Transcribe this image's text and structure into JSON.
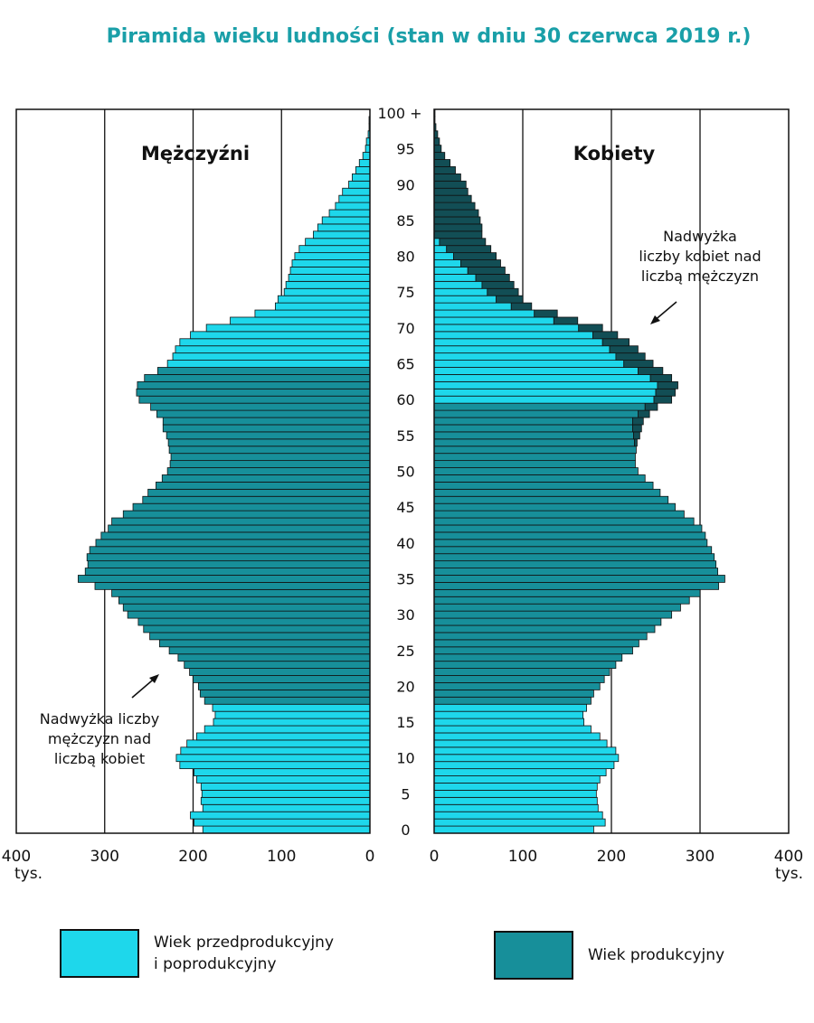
{
  "title": "Piramida wieku ludności (stan w dniu 30 czerwca 2019 r.)",
  "colors": {
    "light": "#1ed7eb",
    "dark": "#178f9a",
    "excess_women": "#124e55",
    "title": "#1a9fa8"
  },
  "chart_data": {
    "type": "bar",
    "orientation": "horizontal-population-pyramid",
    "title": "Piramida wieku ludności (stan w dniu 30 czerwca 2019 r.)",
    "units": "tys.",
    "xlim": [
      0,
      400
    ],
    "x_ticks": [
      400,
      300,
      200,
      100,
      0
    ],
    "age_ticks": [
      "0",
      "5",
      "10",
      "15",
      "20",
      "25",
      "30",
      "35",
      "40",
      "45",
      "50",
      "55",
      "60",
      "65",
      "70",
      "75",
      "80",
      "85",
      "90",
      "95",
      "100 +"
    ],
    "ages": [
      0,
      1,
      2,
      3,
      4,
      5,
      6,
      7,
      8,
      9,
      10,
      11,
      12,
      13,
      14,
      15,
      16,
      17,
      18,
      19,
      20,
      21,
      22,
      23,
      24,
      25,
      26,
      27,
      28,
      29,
      30,
      31,
      32,
      33,
      34,
      35,
      36,
      37,
      38,
      39,
      40,
      41,
      42,
      43,
      44,
      45,
      46,
      47,
      48,
      49,
      50,
      51,
      52,
      53,
      54,
      55,
      56,
      57,
      58,
      59,
      60,
      61,
      62,
      63,
      64,
      65,
      66,
      67,
      68,
      69,
      70,
      71,
      72,
      73,
      74,
      75,
      76,
      77,
      78,
      79,
      80,
      81,
      82,
      83,
      84,
      85,
      86,
      87,
      88,
      89,
      90,
      91,
      92,
      93,
      94,
      95,
      96,
      97,
      98,
      99,
      100
    ],
    "working_age": {
      "men": [
        18,
        64
      ],
      "women": [
        18,
        59
      ]
    },
    "series": [
      {
        "name": "Mężczyźni",
        "values": [
          189,
          199,
          203,
          189,
          191,
          190,
          191,
          196,
          199,
          215,
          219,
          214,
          207,
          196,
          187,
          177,
          175,
          178,
          187,
          192,
          194,
          200,
          204,
          210,
          217,
          227,
          238,
          249,
          256,
          262,
          274,
          279,
          284,
          292,
          311,
          330,
          322,
          319,
          320,
          317,
          310,
          304,
          296,
          292,
          279,
          268,
          257,
          251,
          242,
          235,
          229,
          226,
          225,
          227,
          228,
          230,
          234,
          234,
          241,
          248,
          261,
          264,
          263,
          255,
          240,
          229,
          223,
          220,
          215,
          203,
          185,
          158,
          130,
          107,
          104,
          97,
          95,
          92,
          90,
          88,
          85,
          80,
          73,
          64,
          59,
          54,
          46,
          39,
          35,
          31,
          24,
          20,
          16,
          12,
          8,
          5,
          4,
          2,
          1,
          1,
          0
        ]
      },
      {
        "name": "Kobiety",
        "values": [
          180,
          193,
          190,
          185,
          184,
          183,
          184,
          187,
          194,
          203,
          208,
          205,
          195,
          187,
          177,
          169,
          168,
          172,
          177,
          180,
          187,
          192,
          198,
          205,
          212,
          224,
          231,
          240,
          249,
          256,
          268,
          278,
          288,
          300,
          321,
          328,
          320,
          318,
          316,
          313,
          308,
          306,
          302,
          293,
          282,
          272,
          264,
          255,
          247,
          238,
          230,
          227,
          227,
          228,
          229,
          232,
          234,
          236,
          243,
          252,
          268,
          272,
          275,
          268,
          258,
          247,
          238,
          230,
          220,
          207,
          190,
          162,
          139,
          110,
          100,
          95,
          90,
          85,
          80,
          75,
          70,
          64,
          58,
          50,
          44,
          38,
          32,
          26,
          20,
          15,
          11,
          7,
          5,
          3,
          2,
          1,
          1,
          1,
          0,
          0,
          0
        ]
      },
      {
        "name": "Nadwyżka liczby kobiet nad liczbą mężczyzn",
        "values": [
          0,
          0,
          0,
          0,
          0,
          0,
          0,
          0,
          0,
          0,
          0,
          0,
          0,
          0,
          0,
          0,
          0,
          0,
          0,
          0,
          0,
          0,
          0,
          0,
          0,
          0,
          0,
          0,
          0,
          0,
          0,
          0,
          0,
          0,
          0,
          0,
          0,
          0,
          0,
          0,
          0,
          0,
          0,
          0,
          0,
          0,
          0,
          0,
          0,
          0,
          0,
          0,
          0,
          0,
          3,
          7,
          10,
          12,
          13,
          14,
          20,
          22,
          23,
          24,
          28,
          33,
          33,
          32,
          30,
          28,
          27,
          27,
          26,
          23,
          30,
          35,
          36,
          38,
          42,
          45,
          48,
          50,
          52,
          54,
          54,
          52,
          50,
          46,
          42,
          38,
          36,
          30,
          24,
          18,
          12,
          8,
          6,
          4,
          2,
          1,
          1
        ]
      }
    ],
    "annotations": {
      "men_excess": [
        "Nadwyżka liczby",
        "mężczyzn nad",
        "liczbą kobiet"
      ],
      "women_excess": [
        "Nadwyżka",
        "liczby kobiet nad",
        "liczbą mężczyzn"
      ]
    }
  },
  "labels": {
    "men": "Mężczyźni",
    "women": "Kobiety",
    "units": "tys."
  },
  "legend": {
    "item1_line1": "Wiek przedprodukcyjny",
    "item1_line2": "i poprodukcyjny",
    "item2": "Wiek produkcyjny"
  }
}
